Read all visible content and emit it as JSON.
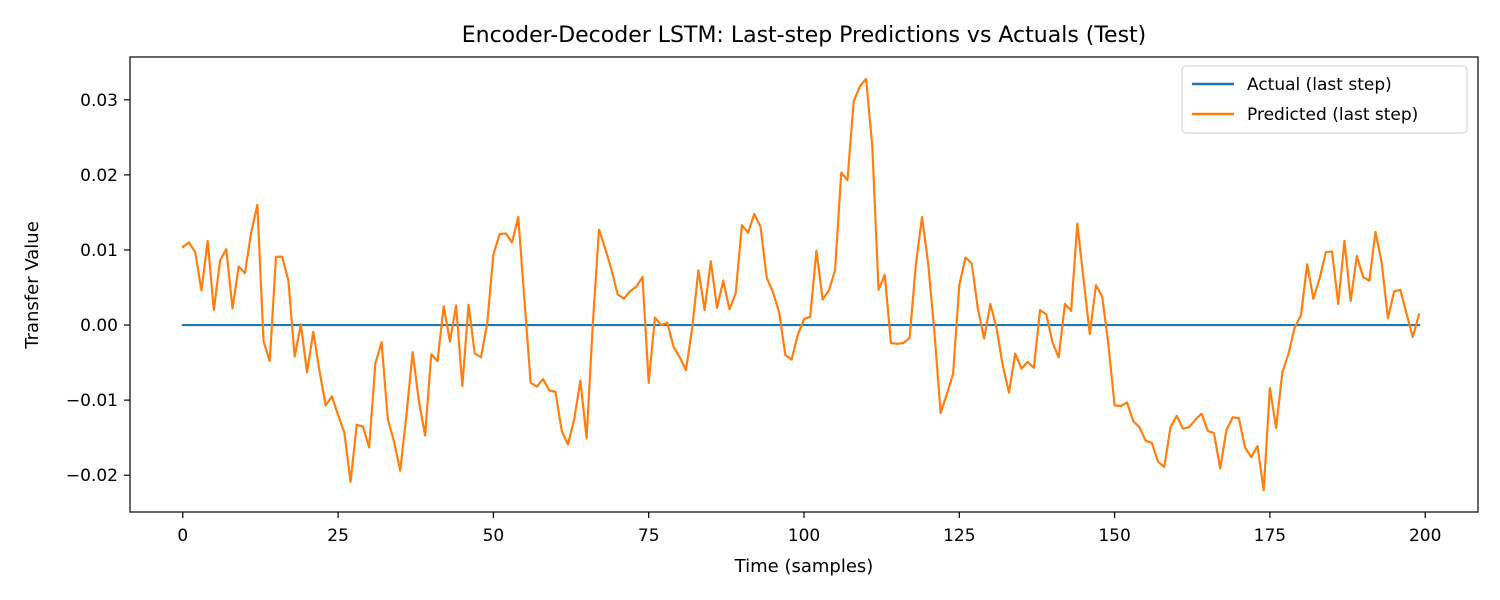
{
  "chart_data": {
    "type": "line",
    "title": "Encoder-Decoder LSTM: Last-step Predictions vs Actuals (Test)",
    "xlabel": "Time (samples)",
    "ylabel": "Transfer Value",
    "xlim": [
      -8.5,
      208.5
    ],
    "ylim": [
      -0.0249,
      0.0357
    ],
    "xticks": [
      0,
      25,
      50,
      75,
      100,
      125,
      150,
      175,
      200
    ],
    "xtick_labels": [
      "0",
      "25",
      "50",
      "75",
      "100",
      "125",
      "150",
      "175",
      "200"
    ],
    "yticks": [
      -0.02,
      -0.01,
      0.0,
      0.01,
      0.02,
      0.03
    ],
    "ytick_labels": [
      "−0.02",
      "−0.01",
      "0.00",
      "0.01",
      "0.02",
      "0.03"
    ],
    "grid": false,
    "legend_position": "top-right",
    "series": [
      {
        "name": "Actual (last step)",
        "color": "#1f77b4",
        "x_start": 0,
        "values": [
          0,
          0,
          0,
          0,
          0,
          0,
          0,
          0,
          0,
          0,
          0,
          0,
          0,
          0,
          0,
          0,
          0,
          0,
          0,
          0,
          0,
          0,
          0,
          0,
          0,
          0,
          0,
          0,
          0,
          0,
          0,
          0,
          0,
          0,
          0,
          0,
          0,
          0,
          0,
          0,
          0,
          0,
          0,
          0,
          0,
          0,
          0,
          0,
          0,
          0,
          0,
          0,
          0,
          0,
          0,
          0,
          0,
          0,
          0,
          0,
          0,
          0,
          0,
          0,
          0,
          0,
          0,
          0,
          0,
          0,
          0,
          0,
          0,
          0,
          0,
          0,
          0,
          0,
          0,
          0,
          0,
          0,
          0,
          0,
          0,
          0,
          0,
          0,
          0,
          0,
          0,
          0,
          0,
          0,
          0,
          0,
          0,
          0,
          0,
          0,
          0,
          0,
          0,
          0,
          0,
          0,
          0,
          0,
          0,
          0,
          0,
          0,
          0,
          0,
          0,
          0,
          0,
          0,
          0,
          0,
          0,
          0,
          0,
          0,
          0,
          0,
          0,
          0,
          0,
          0,
          0,
          0,
          0,
          0,
          0,
          0,
          0,
          0,
          0,
          0,
          0,
          0,
          0,
          0,
          0,
          0,
          0,
          0,
          0,
          0,
          0,
          0,
          0,
          0,
          0,
          0,
          0,
          0,
          0,
          0,
          0,
          0,
          0,
          0,
          0,
          0,
          0,
          0,
          0,
          0,
          0,
          0,
          0,
          0,
          0,
          0,
          0,
          0,
          0,
          0,
          0,
          0,
          0,
          0,
          0,
          0,
          0,
          0,
          0,
          0,
          0,
          0,
          0,
          0,
          0,
          0,
          0,
          0,
          0,
          0
        ]
      },
      {
        "name": "Predicted (last step)",
        "color": "#ff7f0e",
        "x_start": 0,
        "values": [
          0.0104,
          0.011,
          0.0097,
          0.0046,
          0.0112,
          0.002,
          0.0086,
          0.0101,
          0.0022,
          0.0078,
          0.0069,
          0.0123,
          0.016,
          -0.0022,
          -0.0048,
          0.0091,
          0.0091,
          0.0059,
          -0.0042,
          0.0001,
          -0.0063,
          -0.0009,
          -0.0061,
          -0.0107,
          -0.0095,
          -0.012,
          -0.0143,
          -0.0209,
          -0.0133,
          -0.0135,
          -0.0163,
          -0.0051,
          -0.0023,
          -0.0125,
          -0.0155,
          -0.0194,
          -0.012,
          -0.0036,
          -0.0101,
          -0.0147,
          -0.0039,
          -0.0048,
          0.0025,
          -0.0022,
          0.0026,
          -0.0081,
          0.0027,
          -0.0038,
          -0.0043,
          0.0002,
          0.0094,
          0.0121,
          0.0122,
          0.011,
          0.0144,
          0.0033,
          -0.0077,
          -0.0082,
          -0.0072,
          -0.0087,
          -0.0089,
          -0.0141,
          -0.0159,
          -0.0126,
          -0.0074,
          -0.0151,
          0.0001,
          0.0127,
          0.0102,
          0.0074,
          0.0041,
          0.0035,
          0.0045,
          0.0051,
          0.0064,
          -0.0077,
          0.001,
          0.0,
          0.0003,
          -0.0029,
          -0.0043,
          -0.006,
          -0.0004,
          0.0073,
          0.002,
          0.0085,
          0.0023,
          0.0059,
          0.0021,
          0.0042,
          0.0133,
          0.0123,
          0.0148,
          0.0131,
          0.0063,
          0.0044,
          0.0017,
          -0.004,
          -0.0046,
          -0.0013,
          0.0008,
          0.0011,
          0.0099,
          0.0034,
          0.0046,
          0.0073,
          0.0203,
          0.0193,
          0.0298,
          0.0318,
          0.0328,
          0.0237,
          0.0047,
          0.0067,
          -0.0024,
          -0.0025,
          -0.0024,
          -0.0017,
          0.008,
          0.0144,
          0.0081,
          -0.001,
          -0.0117,
          -0.0092,
          -0.0065,
          0.0053,
          0.009,
          0.0082,
          0.0021,
          -0.0018,
          0.0028,
          -0.0004,
          -0.0054,
          -0.009,
          -0.0038,
          -0.0058,
          -0.0049,
          -0.0057,
          0.002,
          0.0014,
          -0.0023,
          -0.0043,
          0.0028,
          0.0019,
          0.0135,
          0.0061,
          -0.0012,
          0.0053,
          0.0038,
          -0.0026,
          -0.0107,
          -0.0108,
          -0.0103,
          -0.0128,
          -0.0136,
          -0.0154,
          -0.0157,
          -0.0182,
          -0.0189,
          -0.0136,
          -0.0121,
          -0.0138,
          -0.0136,
          -0.0126,
          -0.0118,
          -0.0141,
          -0.0144,
          -0.0191,
          -0.014,
          -0.0123,
          -0.0124,
          -0.0163,
          -0.0176,
          -0.0161,
          -0.022,
          -0.0084,
          -0.0137,
          -0.0063,
          -0.0038,
          -0.0003,
          0.0013,
          0.0081,
          0.0035,
          0.0062,
          0.0097,
          0.0098,
          0.0028,
          0.0112,
          0.0032,
          0.0092,
          0.0064,
          0.0059,
          0.0124,
          0.0083,
          0.0009,
          0.0045,
          0.0047,
          0.0015,
          -0.0016,
          0.0014
        ]
      }
    ]
  }
}
